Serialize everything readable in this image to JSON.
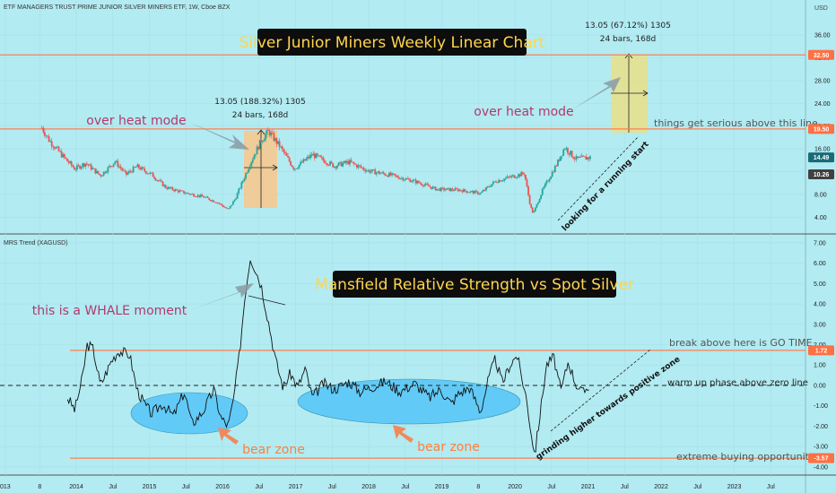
{
  "header": {
    "symbol_title": "ETF MANAGERS TRUST PRIME JUNIOR SILVER MINERS ETF, 1W, Cboe BZX",
    "currency": "USD"
  },
  "indicator": {
    "name": "MRS Trend (XAGUSD)"
  },
  "colors": {
    "background": "#b2ebf2",
    "candle_up": "#26a69a",
    "candle_down": "#ef5350",
    "level_line": "#ff7f50",
    "title_box": "#0d0d0d",
    "title_text": "#ffd54f",
    "note_pink": "#b03a6e",
    "bear_zone_fill": "#4fc3f7",
    "bear_label": "#ff7f3a",
    "box_orange": "#f9c78a",
    "box_yellow": "#e6e08e",
    "axis_marker": "#ff7043"
  },
  "chart_data": [
    {
      "type": "candlestick",
      "title": "Silver Junior Miners Weekly Linear Chart",
      "x_ticks": [
        "013",
        "8",
        "2014",
        "Jul",
        "2015",
        "Jul",
        "2016",
        "Jul",
        "2017",
        "Jul",
        "2018",
        "Jul",
        "2019",
        "8",
        "2020",
        "Jul",
        "2021",
        "Jul",
        "2022",
        "Jul",
        "2023",
        "Jul"
      ],
      "y_ticks": [
        4.0,
        8.0,
        12.0,
        16.0,
        20.0,
        24.0,
        28.0,
        32.0,
        36.0
      ],
      "y_tick_labels": [
        "4.00",
        "8.00",
        "12.00",
        "16.00",
        "20.00",
        "24.00",
        "28.00",
        "32.00",
        "36.00"
      ],
      "ylim": [
        2.0,
        39.0
      ],
      "levels": [
        {
          "value": 19.5,
          "label": "19.50"
        },
        {
          "value": 32.5,
          "label": "32.50"
        }
      ],
      "last_prices": [
        {
          "value": 14.49,
          "label": "14.49"
        },
        {
          "value": 10.26,
          "label": "10.26"
        }
      ],
      "close_anchors": [
        [
          2013.5,
          19.7
        ],
        [
          2013.6,
          17.5
        ],
        [
          2013.8,
          14.5
        ],
        [
          2013.95,
          12.5
        ],
        [
          2014.1,
          13.5
        ],
        [
          2014.3,
          11.3
        ],
        [
          2014.5,
          13.8
        ],
        [
          2014.65,
          11.5
        ],
        [
          2014.8,
          12.9
        ],
        [
          2015.0,
          11.5
        ],
        [
          2015.2,
          9.2
        ],
        [
          2015.45,
          8.3
        ],
        [
          2015.7,
          7.6
        ],
        [
          2015.9,
          6.6
        ],
        [
          2016.05,
          5.3
        ],
        [
          2016.15,
          7.4
        ],
        [
          2016.35,
          13.5
        ],
        [
          2016.5,
          17.5
        ],
        [
          2016.6,
          19.1
        ],
        [
          2016.75,
          16.5
        ],
        [
          2016.95,
          12.5
        ],
        [
          2017.2,
          15.0
        ],
        [
          2017.5,
          13.0
        ],
        [
          2017.7,
          13.7
        ],
        [
          2017.95,
          12.2
        ],
        [
          2018.3,
          11.3
        ],
        [
          2018.6,
          10.3
        ],
        [
          2018.9,
          8.9
        ],
        [
          2019.2,
          8.8
        ],
        [
          2019.5,
          8.2
        ],
        [
          2019.7,
          10.3
        ],
        [
          2019.95,
          11.2
        ],
        [
          2020.1,
          11.7
        ],
        [
          2020.18,
          6.0
        ],
        [
          2020.22,
          4.6
        ],
        [
          2020.35,
          8.8
        ],
        [
          2020.55,
          13.5
        ],
        [
          2020.65,
          16.3
        ],
        [
          2020.8,
          14.2
        ],
        [
          2021.0,
          14.49
        ]
      ],
      "annotations": [
        {
          "id": "overheat_1",
          "text": "over heat mode"
        },
        {
          "id": "overheat_2",
          "text": "over heat mode"
        },
        {
          "id": "measure_1_line1",
          "text": "13.05 (188.32%) 1305"
        },
        {
          "id": "measure_1_line2",
          "text": "24 bars, 168d"
        },
        {
          "id": "measure_2_line1",
          "text": "13.05 (67.12%) 1305"
        },
        {
          "id": "measure_2_line2",
          "text": "24 bars, 168d"
        },
        {
          "id": "serious",
          "text": "things get serious above this line"
        },
        {
          "id": "running_start",
          "text": "looking for a running start"
        }
      ]
    },
    {
      "type": "line",
      "title": "Mansfield Relative Strength vs Spot Silver",
      "series": [
        {
          "name": "MRS Trend (XAGUSD)",
          "points": [
            [
              2013.85,
              -0.6
            ],
            [
              2013.95,
              -1.2
            ],
            [
              2014.05,
              0.3
            ],
            [
              2014.12,
              2.0
            ],
            [
              2014.2,
              1.8
            ],
            [
              2014.3,
              0.0
            ],
            [
              2014.45,
              1.2
            ],
            [
              2014.55,
              1.7
            ],
            [
              2014.7,
              1.5
            ],
            [
              2014.8,
              -0.2
            ],
            [
              2014.9,
              -0.9
            ],
            [
              2015.0,
              -1.4
            ],
            [
              2015.15,
              -0.9
            ],
            [
              2015.3,
              -1.5
            ],
            [
              2015.45,
              -0.3
            ],
            [
              2015.55,
              -1.9
            ],
            [
              2015.7,
              -1.3
            ],
            [
              2015.85,
              -0.2
            ],
            [
              2015.95,
              -1.6
            ],
            [
              2016.05,
              -2.0
            ],
            [
              2016.12,
              -0.7
            ],
            [
              2016.2,
              1.5
            ],
            [
              2016.28,
              4.5
            ],
            [
              2016.35,
              6.3
            ],
            [
              2016.42,
              5.7
            ],
            [
              2016.5,
              4.9
            ],
            [
              2016.6,
              3.1
            ],
            [
              2016.7,
              1.2
            ],
            [
              2016.8,
              -0.1
            ],
            [
              2016.9,
              0.6
            ],
            [
              2017.0,
              -0.1
            ],
            [
              2017.1,
              0.8
            ],
            [
              2017.2,
              -0.6
            ],
            [
              2017.35,
              0.1
            ],
            [
              2017.5,
              -0.2
            ],
            [
              2017.7,
              0.2
            ],
            [
              2017.85,
              -0.3
            ],
            [
              2018.0,
              -0.1
            ],
            [
              2018.2,
              0.2
            ],
            [
              2018.4,
              -0.3
            ],
            [
              2018.6,
              0.1
            ],
            [
              2018.8,
              -0.6
            ],
            [
              2018.95,
              -0.2
            ],
            [
              2019.1,
              -0.9
            ],
            [
              2019.2,
              -0.4
            ],
            [
              2019.35,
              -0.1
            ],
            [
              2019.5,
              -1.3
            ],
            [
              2019.6,
              0.2
            ],
            [
              2019.7,
              1.3
            ],
            [
              2019.8,
              0.1
            ],
            [
              2019.9,
              1.0
            ],
            [
              2020.0,
              1.5
            ],
            [
              2020.05,
              0.6
            ],
            [
              2020.12,
              -0.5
            ],
            [
              2020.2,
              -2.5
            ],
            [
              2020.24,
              -3.4
            ],
            [
              2020.3,
              -1.8
            ],
            [
              2020.4,
              1.0
            ],
            [
              2020.5,
              1.4
            ],
            [
              2020.6,
              -0.3
            ],
            [
              2020.7,
              1.2
            ],
            [
              2020.8,
              0.1
            ],
            [
              2020.9,
              -0.4
            ],
            [
              2021.0,
              0.1
            ]
          ]
        }
      ],
      "y_ticks": [
        -4.0,
        -3.0,
        -2.0,
        -1.0,
        0.0,
        1.0,
        2.0,
        3.0,
        4.0,
        5.0,
        6.0,
        7.0
      ],
      "y_tick_labels": [
        "-4.00",
        "-3.00",
        "-2.00",
        "-1.00",
        "0.00",
        "1.00",
        "2.00",
        "3.00",
        "4.00",
        "5.00",
        "6.00",
        "7.00"
      ],
      "ylim": [
        -4.4,
        7.3
      ],
      "levels": [
        {
          "value": 1.72,
          "label": "1.72"
        },
        {
          "value": -3.57,
          "label": "-3.57"
        }
      ],
      "zero_line": 0,
      "annotations": [
        {
          "id": "whale",
          "text": "this is a WHALE moment"
        },
        {
          "id": "bear_1",
          "text": "bear zone"
        },
        {
          "id": "bear_2",
          "text": "bear zone"
        },
        {
          "id": "go_time",
          "text": "break above here is GO TIME"
        },
        {
          "id": "warm_up",
          "text": "warm up phase above zero line"
        },
        {
          "id": "grinding",
          "text": "grinding higher towards positive zone"
        },
        {
          "id": "extreme",
          "text": "extreme buying opportunity"
        }
      ]
    }
  ]
}
